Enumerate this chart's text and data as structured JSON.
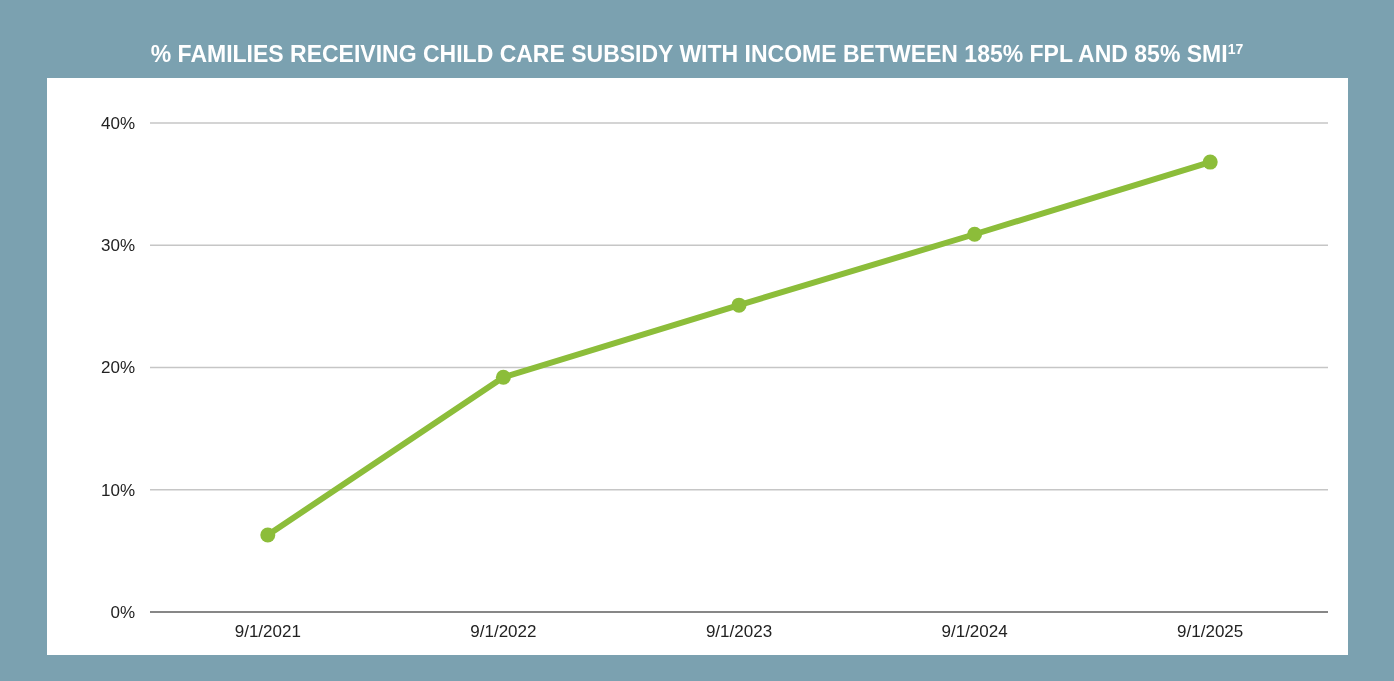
{
  "chart_data": {
    "type": "line",
    "title": "% FAMILIES RECEIVING CHILD CARE SUBSIDY WITH INCOME BETWEEN 185% FPL AND 85% SMI$^{17}$",
    "categories": [
      "9/1/2021",
      "9/1/2022",
      "9/1/2023",
      "9/1/2024",
      "9/1/2025"
    ],
    "series": [
      {
        "color": "#8cbd3a",
        "values": [
          6.3,
          19.2,
          25.1,
          30.9,
          36.8
        ]
      }
    ],
    "ylim": [
      0,
      40
    ],
    "yticks": [
      {
        "value": 0,
        "label": "0%"
      },
      {
        "value": 10,
        "label": "10%"
      },
      {
        "value": 20,
        "label": "20%"
      },
      {
        "value": 30,
        "label": "30%"
      },
      {
        "value": 40,
        "label": "40%"
      }
    ],
    "grid": "y",
    "marker": "circle",
    "line_style": "solid"
  }
}
